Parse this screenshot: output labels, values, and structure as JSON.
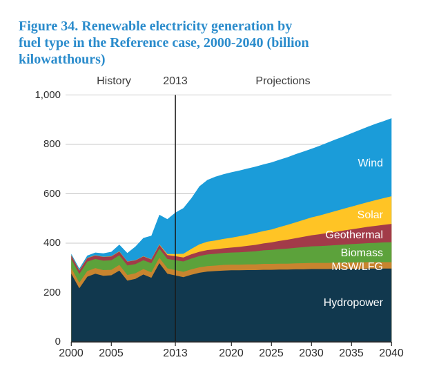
{
  "title_lines": [
    "Figure 34. Renewable electricity generation by",
    "fuel type in the Reference case, 2000-2040 (billion",
    "kilowatthours)"
  ],
  "header": {
    "history_label": "History",
    "divider_year_label": "2013",
    "projections_label": "Projections"
  },
  "y_axis": {
    "tick_values": [
      0,
      200,
      400,
      600,
      800,
      1000
    ],
    "tick_labels": [
      "0",
      "200",
      "400",
      "600",
      "800",
      "1,000"
    ],
    "min": 0,
    "max": 1000
  },
  "x_axis": {
    "tick_years": [
      2000,
      2005,
      2013,
      2020,
      2025,
      2030,
      2035,
      2040
    ],
    "tick_labels": [
      "2000",
      "2005",
      "2013",
      "2020",
      "2025",
      "2030",
      "2035",
      "2040"
    ],
    "min": 2000,
    "max": 2040
  },
  "colors": {
    "title": "#2b8ccc",
    "grid": "#c8c8c8",
    "axis": "#2b2b2b",
    "divider": "#1a1a1a",
    "label_text": "#ffffff"
  },
  "chart_data": {
    "type": "area",
    "stacked": true,
    "title": "Renewable electricity generation by fuel type in the Reference case, 2000-2040",
    "ylabel": "billion kilowatthours",
    "ylim": [
      0,
      1000
    ],
    "grid": "horizontal, every 200",
    "legend_position": "inline area labels",
    "divider_year": 2013,
    "annotations": [
      "History",
      "2013",
      "Projections"
    ],
    "x": [
      2000,
      2001,
      2002,
      2003,
      2004,
      2005,
      2006,
      2007,
      2008,
      2009,
      2010,
      2011,
      2012,
      2013,
      2014,
      2015,
      2016,
      2017,
      2018,
      2019,
      2020,
      2021,
      2022,
      2023,
      2024,
      2025,
      2026,
      2027,
      2028,
      2029,
      2030,
      2031,
      2032,
      2033,
      2034,
      2035,
      2036,
      2037,
      2038,
      2039,
      2040
    ],
    "series": [
      {
        "name": "Hydropower",
        "color": "#11384e",
        "values": [
          276,
          217,
          264,
          276,
          268,
          270,
          289,
          248,
          255,
          273,
          260,
          319,
          276,
          269,
          262,
          272,
          280,
          285,
          287,
          289,
          290,
          290,
          291,
          291,
          292,
          292,
          293,
          293,
          294,
          294,
          295,
          295,
          295,
          296,
          296,
          296,
          296,
          297,
          297,
          297,
          297
        ]
      },
      {
        "name": "MSW/LFG",
        "color": "#c8842f",
        "values": [
          23,
          23,
          23,
          23,
          23,
          22,
          23,
          23,
          23,
          22,
          22,
          22,
          22,
          22,
          22,
          22,
          22,
          22,
          22,
          23,
          23,
          23,
          23,
          23,
          24,
          24,
          24,
          24,
          24,
          25,
          25,
          25,
          25,
          25,
          25,
          26,
          26,
          26,
          26,
          26,
          26
        ]
      },
      {
        "name": "Biomass",
        "color": "#5ca23b",
        "values": [
          37,
          35,
          38,
          37,
          38,
          39,
          39,
          39,
          37,
          36,
          37,
          37,
          38,
          40,
          42,
          44,
          46,
          47,
          48,
          48,
          49,
          50,
          51,
          53,
          55,
          57,
          59,
          61,
          63,
          65,
          67,
          68,
          70,
          71,
          73,
          74,
          76,
          77,
          78,
          80,
          81
        ]
      },
      {
        "name": "Geothermal",
        "color": "#a23b49",
        "values": [
          14,
          14,
          14,
          14,
          15,
          15,
          15,
          15,
          15,
          15,
          15,
          15,
          16,
          16,
          16,
          17,
          17,
          18,
          18,
          19,
          20,
          22,
          24,
          26,
          28,
          30,
          33,
          36,
          39,
          42,
          45,
          48,
          51,
          54,
          57,
          60,
          63,
          66,
          69,
          71,
          74
        ]
      },
      {
        "name": "Solar",
        "color": "#ffc425",
        "values": [
          1,
          1,
          1,
          1,
          1,
          1,
          1,
          1,
          1,
          1,
          1,
          2,
          4,
          9,
          15,
          22,
          30,
          34,
          36,
          38,
          40,
          43,
          45,
          48,
          50,
          52,
          56,
          60,
          64,
          68,
          72,
          76,
          80,
          84,
          88,
          92,
          96,
          100,
          104,
          108,
          112
        ]
      },
      {
        "name": "Wind",
        "color": "#1b9cd9",
        "values": [
          6,
          7,
          10,
          11,
          14,
          18,
          27,
          34,
          55,
          74,
          95,
          120,
          141,
          168,
          185,
          205,
          235,
          250,
          258,
          262,
          265,
          266,
          268,
          269,
          270,
          272,
          273,
          274,
          276,
          277,
          278,
          282,
          286,
          290,
          293,
          297,
          301,
          305,
          309,
          312,
          316
        ]
      }
    ]
  }
}
